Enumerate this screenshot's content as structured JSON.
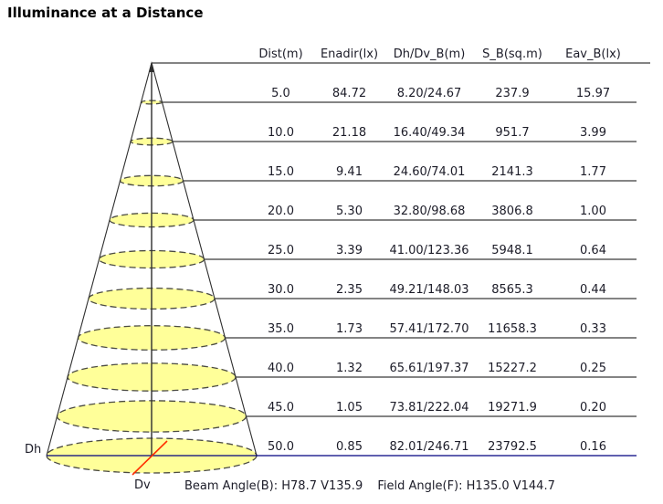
{
  "title": "Illuminance at a Distance",
  "table": {
    "headers": [
      "Dist(m)",
      "Enadir(lx)",
      "Dh/Dv_B(m)",
      "S_B(sq.m)",
      "Eav_B(lx)"
    ],
    "rows": [
      {
        "dist": "5.0",
        "enadir": "84.72",
        "dhdv": "8.20/24.67",
        "sb": "237.9",
        "eav": "15.97"
      },
      {
        "dist": "10.0",
        "enadir": "21.18",
        "dhdv": "16.40/49.34",
        "sb": "951.7",
        "eav": "3.99"
      },
      {
        "dist": "15.0",
        "enadir": "9.41",
        "dhdv": "24.60/74.01",
        "sb": "2141.3",
        "eav": "1.77"
      },
      {
        "dist": "20.0",
        "enadir": "5.30",
        "dhdv": "32.80/98.68",
        "sb": "3806.8",
        "eav": "1.00"
      },
      {
        "dist": "25.0",
        "enadir": "3.39",
        "dhdv": "41.00/123.36",
        "sb": "5948.1",
        "eav": "0.64"
      },
      {
        "dist": "30.0",
        "enadir": "2.35",
        "dhdv": "49.21/148.03",
        "sb": "8565.3",
        "eav": "0.44"
      },
      {
        "dist": "35.0",
        "enadir": "1.73",
        "dhdv": "57.41/172.70",
        "sb": "11658.3",
        "eav": "0.33"
      },
      {
        "dist": "40.0",
        "enadir": "1.32",
        "dhdv": "65.61/197.37",
        "sb": "15227.2",
        "eav": "0.25"
      },
      {
        "dist": "45.0",
        "enadir": "1.05",
        "dhdv": "73.81/222.04",
        "sb": "19271.9",
        "eav": "0.20"
      },
      {
        "dist": "50.0",
        "enadir": "0.85",
        "dhdv": "82.01/246.71",
        "sb": "23792.5",
        "eav": "0.16"
      }
    ]
  },
  "diagram": {
    "dh_label": "Dh",
    "dv_label": "Dv"
  },
  "footer": {
    "beam_angle": "Beam Angle(B): H78.7 V135.9",
    "field_angle": "Field Angle(F): H135.0 V144.7"
  },
  "colors": {
    "beam_fill": "#ffff99",
    "beam_stroke": "#4b4b42",
    "row_line": "#3a3a3a",
    "axis": "#2e2e2e",
    "dh_line": "#00007f",
    "dv_line": "#ff2d00",
    "text": "#1c1c28"
  },
  "chart_data": {
    "type": "table",
    "title": "Illuminance at a Distance",
    "columns": [
      "Dist(m)",
      "Enadir(lx)",
      "Dh/Dv_B(m)",
      "S_B(sq.m)",
      "Eav_B(lx)"
    ],
    "rows": [
      [
        5.0,
        84.72,
        "8.20/24.67",
        237.9,
        15.97
      ],
      [
        10.0,
        21.18,
        "16.40/49.34",
        951.7,
        3.99
      ],
      [
        15.0,
        9.41,
        "24.60/74.01",
        2141.3,
        1.77
      ],
      [
        20.0,
        5.3,
        "32.80/98.68",
        3806.8,
        1.0
      ],
      [
        25.0,
        3.39,
        "41.00/123.36",
        5948.1,
        0.64
      ],
      [
        30.0,
        2.35,
        "49.21/148.03",
        8565.3,
        0.44
      ],
      [
        35.0,
        1.73,
        "57.41/172.70",
        11658.3,
        0.33
      ],
      [
        40.0,
        1.32,
        "65.61/197.37",
        15227.2,
        0.25
      ],
      [
        45.0,
        1.05,
        "73.81/222.04",
        19271.9,
        0.2
      ],
      [
        50.0,
        0.85,
        "82.01/246.71",
        23792.5,
        0.16
      ]
    ],
    "distances": [
      5,
      10,
      15,
      20,
      25,
      30,
      35,
      40,
      45,
      50
    ],
    "beam_angle": {
      "H": 78.7,
      "V": 135.9
    },
    "field_angle": {
      "H": 135.0,
      "V": 144.7
    }
  }
}
